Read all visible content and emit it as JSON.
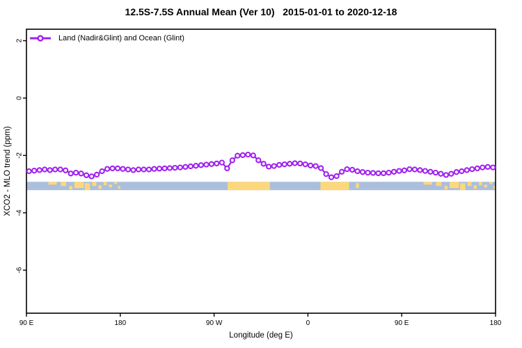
{
  "chart_data": {
    "type": "line",
    "title": "12.5S-7.5S Annual Mean (Ver 10)   2015-01-01 to 2020-12-18",
    "xlabel": "Longitude (deg E)",
    "ylabel": "XCO2 - MLO trend (ppm)",
    "grid": false,
    "legend_position": "top-left-inside",
    "x_axis": {
      "note": "axis runs eastward from 90E through 180, 90W, 0, 90E to 180 (450 deg total)",
      "domain_deg": [
        0,
        450
      ],
      "ticks_deg": [
        0,
        90,
        180,
        270,
        360,
        450
      ],
      "tick_labels": [
        "90 E",
        "180",
        "90 W",
        "0",
        "90 E",
        "180"
      ]
    },
    "y_axis": {
      "domain_ppm": [
        -7.5,
        2.4
      ],
      "ticks_ppm": [
        2,
        0,
        -2,
        -4,
        -6
      ],
      "tick_labels": [
        "2",
        "0",
        "-2",
        "-4",
        "-6"
      ]
    },
    "series": [
      {
        "name": "Land (Nadir&Glint) and Ocean (Glint)",
        "color": "#A020F0",
        "marker": "open-circle",
        "x_start_deg": 2.5,
        "x_step_deg": 5,
        "values_ppm": [
          -2.55,
          -2.53,
          -2.51,
          -2.49,
          -2.51,
          -2.49,
          -2.49,
          -2.52,
          -2.63,
          -2.6,
          -2.63,
          -2.69,
          -2.73,
          -2.67,
          -2.55,
          -2.47,
          -2.45,
          -2.45,
          -2.47,
          -2.49,
          -2.51,
          -2.49,
          -2.49,
          -2.49,
          -2.47,
          -2.46,
          -2.45,
          -2.44,
          -2.43,
          -2.42,
          -2.4,
          -2.38,
          -2.36,
          -2.34,
          -2.32,
          -2.3,
          -2.28,
          -2.25,
          -2.45,
          -2.17,
          -2.01,
          -1.99,
          -1.97,
          -2.0,
          -2.17,
          -2.29,
          -2.39,
          -2.37,
          -2.33,
          -2.31,
          -2.29,
          -2.27,
          -2.28,
          -2.31,
          -2.35,
          -2.37,
          -2.44,
          -2.65,
          -2.76,
          -2.72,
          -2.57,
          -2.48,
          -2.5,
          -2.55,
          -2.58,
          -2.6,
          -2.61,
          -2.62,
          -2.62,
          -2.6,
          -2.57,
          -2.54,
          -2.52,
          -2.48,
          -2.49,
          -2.51,
          -2.54,
          -2.57,
          -2.6,
          -2.64,
          -2.68,
          -2.64,
          -2.58,
          -2.55,
          -2.51,
          -2.48,
          -2.45,
          -2.42,
          -2.4,
          -2.42
        ]
      }
    ],
    "map_strip": {
      "description": "land/ocean strip for latitude band 12.5S-7.5S drawn across the plot",
      "ocean_color": "#AABFDC",
      "land_color": "#FCD87D",
      "y_top_ppm": -2.92,
      "y_bottom_ppm": -3.21,
      "land_spans_deg": [
        [
          193,
          233.5
        ],
        [
          282,
          309.5
        ]
      ],
      "islands": [
        [
          21,
          8,
          0,
          4
        ],
        [
          33,
          5,
          0,
          6
        ],
        [
          41,
          3,
          6,
          5
        ],
        [
          46,
          9,
          0,
          9
        ],
        [
          56,
          5,
          2,
          10
        ],
        [
          63,
          4,
          0,
          6
        ],
        [
          69,
          3,
          5,
          5
        ],
        [
          74,
          3,
          0,
          5
        ],
        [
          79,
          3,
          4,
          4
        ],
        [
          84,
          3,
          0,
          3
        ],
        [
          88,
          2,
          6,
          4
        ],
        [
          316,
          3,
          2,
          7
        ],
        [
          381,
          8,
          0,
          4
        ],
        [
          393,
          5,
          0,
          6
        ],
        [
          401,
          3,
          6,
          5
        ],
        [
          406,
          9,
          0,
          9
        ],
        [
          416,
          5,
          2,
          10
        ],
        [
          423,
          4,
          0,
          6
        ],
        [
          429,
          3,
          5,
          5
        ],
        [
          434,
          3,
          0,
          5
        ],
        [
          439,
          3,
          4,
          4
        ],
        [
          444,
          3,
          0,
          3
        ],
        [
          448,
          2,
          6,
          4
        ]
      ]
    }
  }
}
